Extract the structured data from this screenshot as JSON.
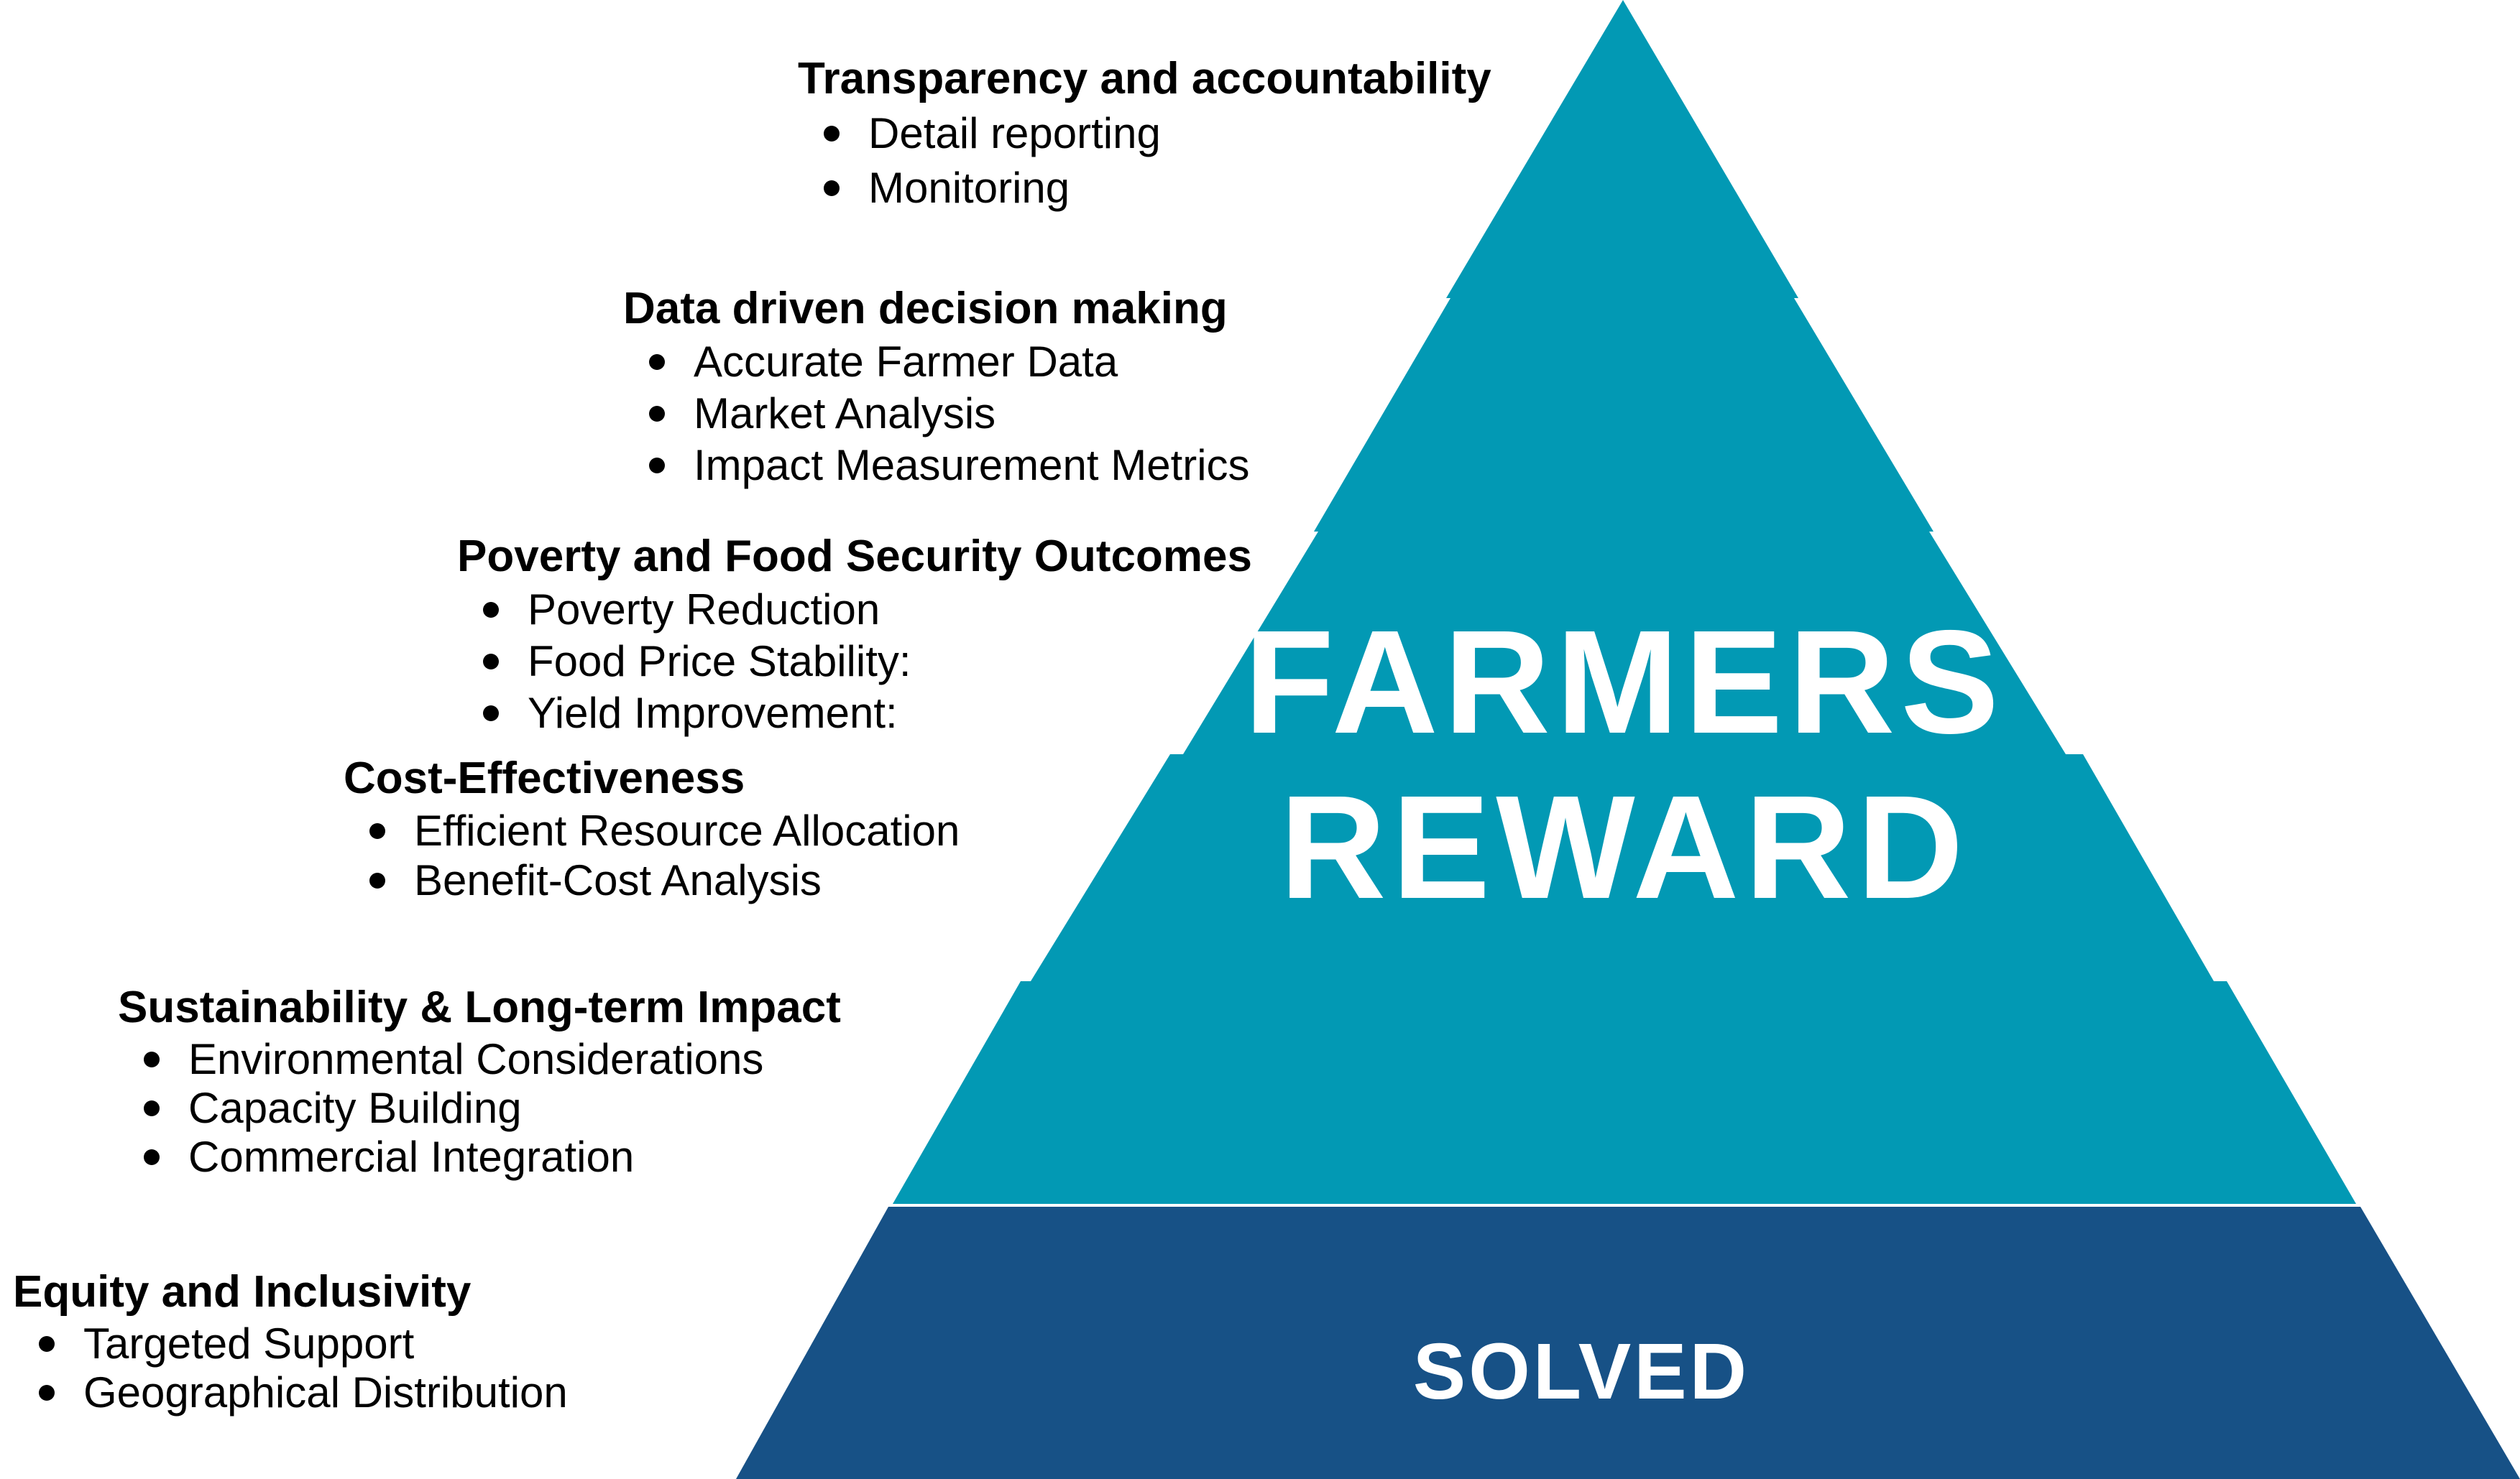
{
  "colors": {
    "pyramid_teal": "#0299b4",
    "pyramid_base_navy": "#175186",
    "text_on_pyramid": "#ffffff",
    "text": "#000000"
  },
  "pyramid": {
    "title_line_1": "FARMERS",
    "title_line_2": "REWARD",
    "base_label": "SOLVED"
  },
  "sections": [
    {
      "heading": "Transparency and accountability",
      "items": [
        "Detail reporting",
        "Monitoring"
      ]
    },
    {
      "heading": "Data driven decision making",
      "items": [
        "Accurate Farmer Data",
        "Market Analysis",
        "Impact Measurement Metrics"
      ]
    },
    {
      "heading": "Poverty and Food Security Outcomes",
      "items": [
        "Poverty Reduction",
        "Food Price Stability:",
        "Yield Improvement:"
      ]
    },
    {
      "heading": "Cost-Effectiveness",
      "items": [
        "Efficient Resource Allocation",
        "Benefit-Cost Analysis"
      ]
    },
    {
      "heading": "Sustainability & Long-term Impact",
      "items": [
        "Environmental Considerations",
        "Capacity Building",
        "Commercial Integration"
      ]
    },
    {
      "heading": "Equity and Inclusivity",
      "items": [
        "Targeted Support",
        "Geographical Distribution"
      ]
    }
  ]
}
